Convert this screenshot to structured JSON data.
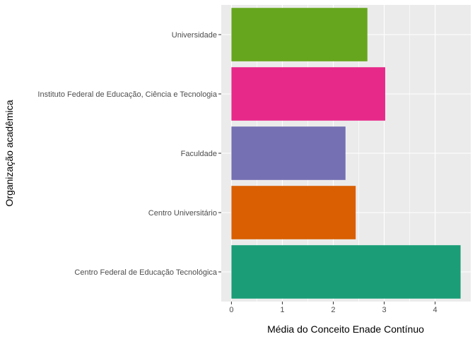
{
  "chart_data": {
    "type": "bar",
    "orientation": "horizontal",
    "categories": [
      "Centro Federal de Educação Tecnológica",
      "Centro Universitário",
      "Faculdade",
      "Instituto Federal de Educação, Ciência e Tecnologia",
      "Universidade"
    ],
    "values": [
      4.5,
      2.44,
      2.24,
      3.02,
      2.67
    ],
    "colors": [
      "#1b9e77",
      "#d95f02",
      "#7570b3",
      "#e7298a",
      "#66a61e"
    ],
    "xlabel": "Média do Conceito Enade Contínuo",
    "ylabel": "Organização acadêmica",
    "xlim": [
      -0.2,
      4.7
    ],
    "xticks": [
      0,
      1,
      2,
      3,
      4
    ],
    "grid": true,
    "legend": "none",
    "panel_background": "#ebebeb"
  }
}
